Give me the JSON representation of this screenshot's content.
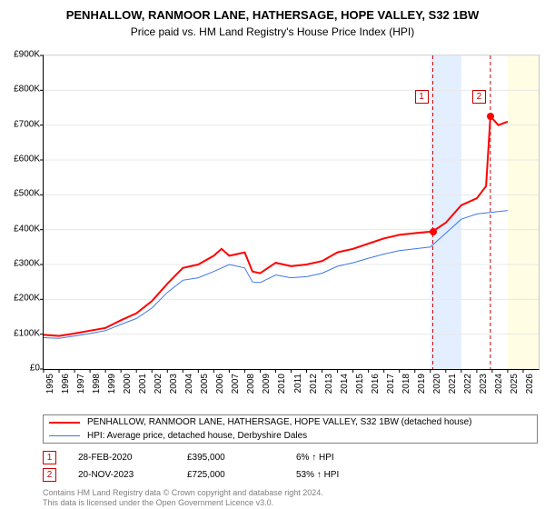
{
  "title": "PENHALLOW, RANMOOR LANE, HATHERSAGE, HOPE VALLEY, S32 1BW",
  "subtitle": "Price paid vs. HM Land Registry's House Price Index (HPI)",
  "chart": {
    "type": "line",
    "xlim": [
      1995,
      2027
    ],
    "ylim": [
      0,
      900
    ],
    "ytick_step": 100,
    "background_color": "#ffffff",
    "ytick_labels": [
      "£0",
      "£100K",
      "£200K",
      "£300K",
      "£400K",
      "£500K",
      "£600K",
      "£700K",
      "£800K",
      "£900K"
    ],
    "xtick_years": [
      1995,
      1996,
      1997,
      1998,
      1999,
      2000,
      2001,
      2002,
      2003,
      2004,
      2005,
      2006,
      2007,
      2008,
      2009,
      2010,
      2011,
      2012,
      2013,
      2014,
      2015,
      2016,
      2017,
      2018,
      2019,
      2020,
      2021,
      2022,
      2023,
      2024,
      2025,
      2026
    ],
    "shaded": [
      {
        "color": "blue",
        "from": 2020,
        "to": 2022,
        "bg": "#e3efff"
      },
      {
        "color": "yellow",
        "from": 2025,
        "to": 2027,
        "bg": "#fffde3"
      }
    ],
    "series_red": {
      "color": "#ff0000",
      "width": 2,
      "label": "PENHALLOW, RANMOOR LANE, HATHERSAGE, HOPE VALLEY, S32 1BW (detached house)",
      "points": [
        [
          1995,
          98
        ],
        [
          1996,
          95
        ],
        [
          1997,
          102
        ],
        [
          1998,
          110
        ],
        [
          1999,
          118
        ],
        [
          2000,
          140
        ],
        [
          2001,
          160
        ],
        [
          2002,
          195
        ],
        [
          2003,
          245
        ],
        [
          2004,
          290
        ],
        [
          2005,
          300
        ],
        [
          2006,
          325
        ],
        [
          2006.5,
          345
        ],
        [
          2007,
          325
        ],
        [
          2008,
          335
        ],
        [
          2008.5,
          280
        ],
        [
          2009,
          275
        ],
        [
          2010,
          305
        ],
        [
          2011,
          295
        ],
        [
          2012,
          300
        ],
        [
          2013,
          310
        ],
        [
          2014,
          335
        ],
        [
          2015,
          345
        ],
        [
          2016,
          360
        ],
        [
          2017,
          375
        ],
        [
          2018,
          385
        ],
        [
          2019,
          390
        ],
        [
          2020.16,
          395
        ],
        [
          2021,
          420
        ],
        [
          2022,
          470
        ],
        [
          2023,
          490
        ],
        [
          2023.6,
          525
        ],
        [
          2023.88,
          725
        ],
        [
          2024.4,
          700
        ],
        [
          2025,
          710
        ]
      ]
    },
    "series_blue": {
      "color": "#3e77e8",
      "width": 1,
      "label": "HPI: Average price, detached house, Derbyshire Dales",
      "points": [
        [
          1995,
          90
        ],
        [
          1996,
          88
        ],
        [
          1997,
          95
        ],
        [
          1998,
          102
        ],
        [
          1999,
          110
        ],
        [
          2000,
          128
        ],
        [
          2001,
          145
        ],
        [
          2002,
          175
        ],
        [
          2003,
          220
        ],
        [
          2004,
          255
        ],
        [
          2005,
          262
        ],
        [
          2006,
          280
        ],
        [
          2007,
          300
        ],
        [
          2008,
          290
        ],
        [
          2008.5,
          250
        ],
        [
          2009,
          248
        ],
        [
          2010,
          270
        ],
        [
          2011,
          262
        ],
        [
          2012,
          265
        ],
        [
          2013,
          275
        ],
        [
          2014,
          295
        ],
        [
          2015,
          305
        ],
        [
          2016,
          318
        ],
        [
          2017,
          330
        ],
        [
          2018,
          340
        ],
        [
          2019,
          345
        ],
        [
          2020,
          350
        ],
        [
          2021,
          390
        ],
        [
          2022,
          430
        ],
        [
          2023,
          445
        ],
        [
          2024,
          450
        ],
        [
          2025,
          455
        ]
      ]
    },
    "sale_markers": [
      {
        "n": "1",
        "x": 2020.16,
        "y": 395,
        "label_y": 100
      },
      {
        "n": "2",
        "x": 2023.88,
        "y": 725,
        "label_y": 100
      }
    ]
  },
  "sales": [
    {
      "n": "1",
      "date": "28-FEB-2020",
      "price": "£395,000",
      "pct": "6% ↑ HPI"
    },
    {
      "n": "2",
      "date": "20-NOV-2023",
      "price": "£725,000",
      "pct": "53% ↑ HPI"
    }
  ],
  "footer1": "Contains HM Land Registry data © Crown copyright and database right 2024.",
  "footer2": "This data is licensed under the Open Government Licence v3.0."
}
